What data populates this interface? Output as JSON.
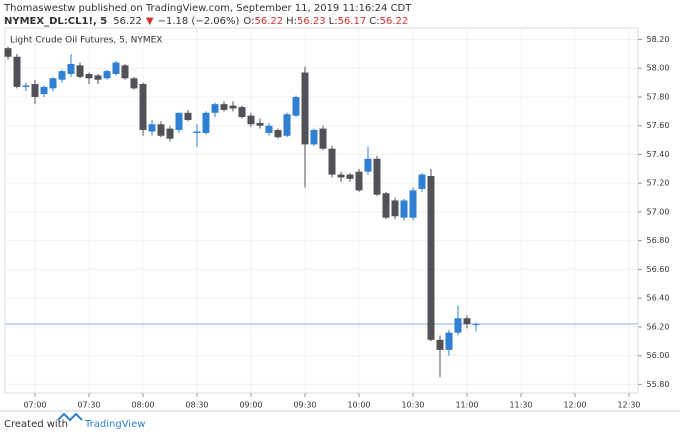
{
  "header": {
    "attribution": "Thomaswestw published on TradingView.com, September 11, 2019 11:16:24 CDT",
    "symbol": "NYMEX_DL:CL1!, 5",
    "last": "56.22",
    "arrow": "▼",
    "change": "−1.18 (−2.06%)",
    "ohlc": [
      {
        "label": "O:",
        "value": "56.22"
      },
      {
        "label": "H:",
        "value": "56.23"
      },
      {
        "label": "L:",
        "value": "56.17"
      },
      {
        "label": "C:",
        "value": "56.22"
      }
    ]
  },
  "footer": {
    "prefix": "Created with",
    "brand": "TradingView"
  },
  "chart_data": {
    "type": "candlestick",
    "title": "Light Crude Oil Futures, 5, NYMEX",
    "x": [
      "06:45",
      "06:50",
      "06:55",
      "07:00",
      "07:05",
      "07:10",
      "07:15",
      "07:20",
      "07:25",
      "07:30",
      "07:35",
      "07:40",
      "07:45",
      "07:50",
      "07:55",
      "08:00",
      "08:05",
      "08:10",
      "08:15",
      "08:20",
      "08:25",
      "08:30",
      "08:35",
      "08:40",
      "08:45",
      "08:50",
      "08:55",
      "09:00",
      "09:05",
      "09:10",
      "09:15",
      "09:20",
      "09:25",
      "09:30",
      "09:35",
      "09:40",
      "09:45",
      "09:50",
      "09:55",
      "10:00",
      "10:05",
      "10:10",
      "10:15",
      "10:20",
      "10:25",
      "10:30",
      "10:35",
      "10:40",
      "10:45",
      "10:50",
      "10:55",
      "11:00",
      "11:05"
    ],
    "open": [
      58.14,
      58.08,
      57.87,
      57.89,
      57.82,
      57.86,
      57.92,
      57.96,
      58.02,
      57.96,
      57.95,
      57.93,
      57.96,
      58.02,
      57.93,
      57.89,
      57.56,
      57.61,
      57.58,
      57.57,
      57.69,
      57.55,
      57.55,
      57.69,
      57.75,
      57.74,
      57.73,
      57.67,
      57.62,
      57.55,
      57.57,
      57.53,
      57.67,
      57.97,
      57.47,
      57.58,
      57.44,
      57.26,
      57.26,
      57.28,
      57.28,
      57.37,
      57.13,
      57.08,
      56.96,
      56.96,
      57.16,
      57.25,
      56.11,
      56.04,
      56.16,
      56.26,
      56.22
    ],
    "high": [
      58.15,
      58.1,
      57.9,
      57.92,
      57.88,
      57.94,
      57.99,
      58.1,
      58.04,
      57.97,
      57.96,
      57.99,
      58.05,
      58.03,
      57.94,
      57.9,
      57.64,
      57.63,
      57.6,
      57.69,
      57.71,
      57.61,
      57.7,
      57.76,
      57.77,
      57.77,
      57.74,
      57.69,
      57.65,
      57.62,
      57.58,
      57.69,
      57.81,
      58.01,
      57.58,
      57.6,
      57.46,
      57.28,
      57.27,
      57.3,
      57.45,
      57.39,
      57.14,
      57.1,
      57.09,
      57.17,
      57.27,
      57.3,
      56.14,
      56.18,
      56.35,
      56.28,
      56.23
    ],
    "low": [
      58.06,
      57.86,
      57.84,
      57.75,
      57.8,
      57.84,
      57.9,
      57.94,
      57.93,
      57.89,
      57.89,
      57.92,
      57.95,
      57.92,
      57.85,
      57.53,
      57.53,
      57.52,
      57.49,
      57.55,
      57.63,
      57.45,
      57.54,
      57.66,
      57.7,
      57.7,
      57.65,
      57.59,
      57.58,
      57.53,
      57.51,
      57.52,
      57.66,
      57.17,
      57.46,
      57.43,
      57.24,
      57.21,
      57.21,
      57.14,
      57.26,
      57.11,
      56.95,
      56.95,
      56.94,
      56.94,
      57.14,
      56.1,
      55.85,
      56.0,
      56.14,
      56.19,
      56.17
    ],
    "close": [
      58.08,
      57.87,
      57.88,
      57.8,
      57.87,
      57.93,
      57.98,
      58.03,
      57.94,
      57.93,
      57.92,
      57.98,
      58.04,
      57.93,
      57.86,
      57.57,
      57.61,
      57.53,
      57.51,
      57.69,
      57.64,
      57.56,
      57.69,
      57.75,
      57.71,
      57.72,
      57.66,
      57.61,
      57.6,
      57.6,
      57.52,
      57.68,
      57.8,
      57.47,
      57.57,
      57.44,
      57.26,
      57.24,
      57.23,
      57.15,
      57.37,
      57.12,
      56.96,
      56.97,
      57.08,
      57.15,
      57.26,
      56.11,
      56.04,
      56.16,
      56.26,
      56.22,
      56.22
    ],
    "up_color": "#2f7fd3",
    "down_color": "#505257",
    "price_line": 56.22,
    "price_line_color": "#8fb4e3",
    "ylim": [
      55.74,
      58.28
    ],
    "yticks": [
      {
        "value": 55.8,
        "label": "55.80"
      },
      {
        "value": 56,
        "label": "56.00"
      },
      {
        "value": 56.2,
        "label": "56.20"
      },
      {
        "value": 56.4,
        "label": "56.40"
      },
      {
        "value": 56.6,
        "label": "56.60"
      },
      {
        "value": 56.8,
        "label": "56.80"
      },
      {
        "value": 57,
        "label": "57.00"
      },
      {
        "value": 57.2,
        "label": "57.20"
      },
      {
        "value": 57.4,
        "label": "57.40"
      },
      {
        "value": 57.6,
        "label": "57.60"
      },
      {
        "value": 57.8,
        "label": "57.80"
      },
      {
        "value": 58,
        "label": "58.00"
      },
      {
        "value": 58.2,
        "label": "58.20"
      }
    ],
    "xticks": [
      "07:00",
      "07:30",
      "08:00",
      "08:30",
      "09:00",
      "09:30",
      "10:00",
      "10:30",
      "11:00",
      "11:30",
      "12:00",
      "12:30"
    ],
    "grid": true
  }
}
